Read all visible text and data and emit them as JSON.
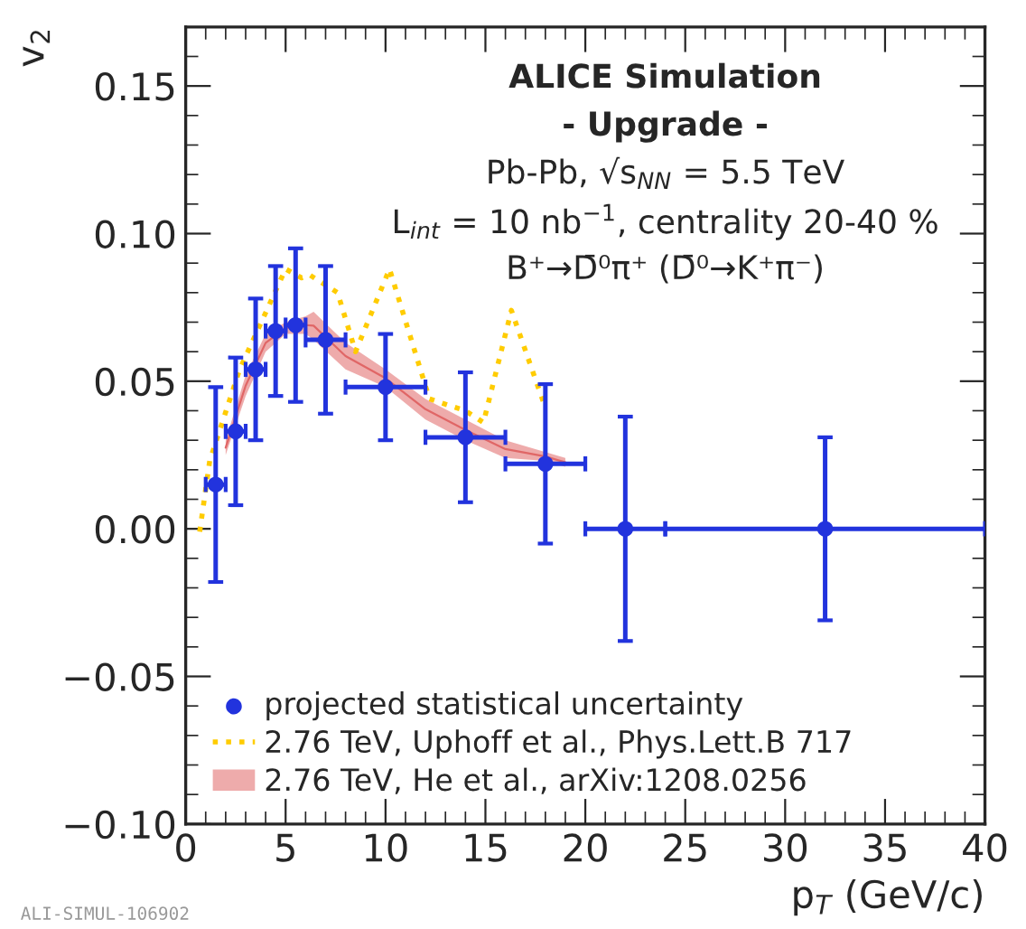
{
  "chart_data": {
    "type": "scatter",
    "xlabel": "p$_{T}$ (GeV/c)",
    "ylabel": "v$_{2}$",
    "xlim": [
      0,
      40
    ],
    "ylim": [
      -0.1,
      0.17
    ],
    "xticks": [
      0,
      5,
      10,
      15,
      20,
      25,
      30,
      35,
      40
    ],
    "yticks": [
      {
        "value": -0.1,
        "label": "−0.10"
      },
      {
        "value": -0.05,
        "label": "−0.05"
      },
      {
        "value": 0,
        "label": "0.00"
      },
      {
        "value": 0.05,
        "label": "0.05"
      },
      {
        "value": 0.1,
        "label": "0.10"
      },
      {
        "value": 0.15,
        "label": "0.15"
      }
    ],
    "grid": false,
    "legend": "bottom left",
    "annotations": [
      "ALICE Simulation",
      "- Upgrade -",
      "Pb-Pb, √s$_{NN}$ = 5.5 TeV",
      "L$_{int}$ = 10 nb$^{−1}$, centrality 20-40 %",
      "B⁺→D̄⁰π⁺ (D̄⁰→K⁺π⁻)",
      "ALI-SIMUL-106902"
    ],
    "series": [
      {
        "type": "line",
        "name": "2.76 TeV, He et al., arXiv:1208.0256",
        "color": "#e06666",
        "x": [
          2,
          3,
          4,
          5,
          6,
          6.4,
          8,
          10,
          12,
          14,
          16,
          18,
          19
        ],
        "values": [
          0.0275,
          0.0485,
          0.063,
          0.068,
          0.069,
          0.0688,
          0.0585,
          0.051,
          0.0405,
          0.0335,
          0.027,
          0.0245,
          0.0225
        ],
        "lower": [
          0.025,
          0.045,
          0.06,
          0.066,
          0.066,
          0.064,
          0.054,
          0.048,
          0.037,
          0.03,
          0.024,
          0.023,
          0.021
        ],
        "upper": [
          0.03,
          0.052,
          0.066,
          0.07,
          0.072,
          0.0735,
          0.063,
          0.054,
          0.044,
          0.037,
          0.03,
          0.026,
          0.024
        ]
      },
      {
        "type": "line",
        "name": "2.76 TeV, Uphoff et al., Phys.Lett.B 717",
        "color": "#ffcc00",
        "line_style": "dotted",
        "marker": "none",
        "x": [
          0.7,
          1.2,
          2.7,
          5.0,
          5.8,
          6.2,
          7.6,
          8.5,
          10.2,
          12.2,
          14.0,
          14.9,
          16.3,
          18.0
        ],
        "values": [
          -0.001,
          0.023,
          0.054,
          0.088,
          0.085,
          0.086,
          0.08,
          0.06,
          0.088,
          0.044,
          0.04,
          0.036,
          0.074,
          0.041
        ]
      },
      {
        "name": "projected statistical uncertainty",
        "color": "#2233dd",
        "marker": "circle",
        "x": [
          1.5,
          2.5,
          3.5,
          4.5,
          5.5,
          7,
          10,
          14,
          18,
          22,
          32
        ],
        "values": [
          0.015,
          0.033,
          0.054,
          0.067,
          0.069,
          0.064,
          0.048,
          0.031,
          0.022,
          0,
          0
        ],
        "errors": [
          0.033,
          0.025,
          0.024,
          0.022,
          0.026,
          0.025,
          0.018,
          0.022,
          0.027,
          0.038,
          0.031
        ],
        "xerrors": [
          0.5,
          0.5,
          0.5,
          0.5,
          0.5,
          1,
          2,
          2,
          2,
          2,
          8
        ]
      }
    ]
  }
}
